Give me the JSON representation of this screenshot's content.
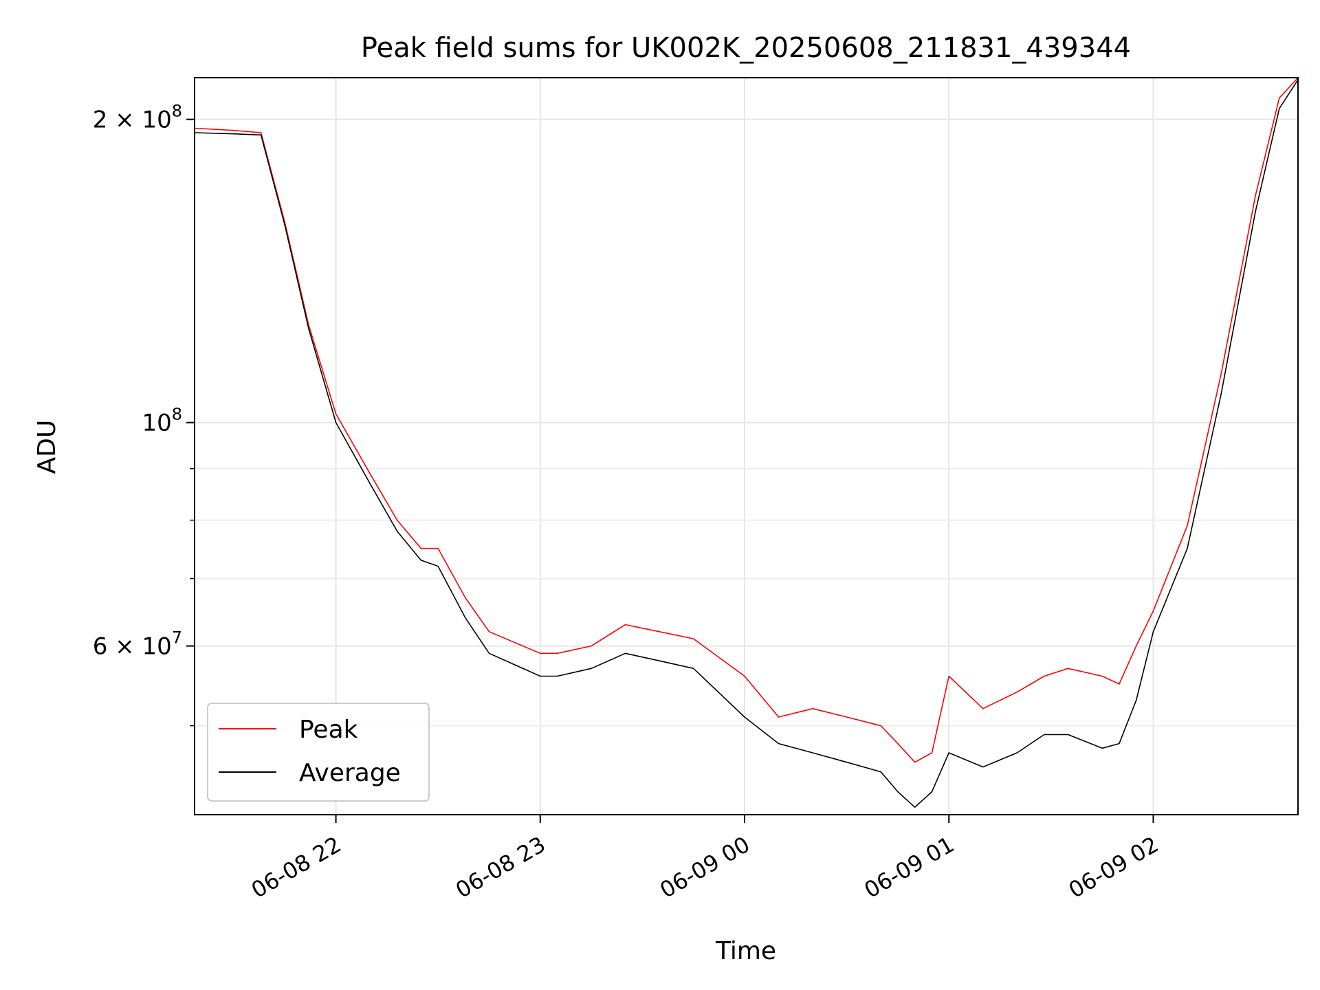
{
  "chart_data": {
    "type": "line",
    "title": "Peak field sums for UK002K_20250608_211831_439344",
    "xlabel": "Time",
    "ylabel": "ADU",
    "yscale": "log",
    "xlim": [
      "2025-06-08T21:18:30",
      "2025-06-09T02:42:30"
    ],
    "ylim": [
      40800000,
      220000000
    ],
    "grid": true,
    "legend": {
      "location": "lower-left"
    },
    "x_ticks": [
      {
        "value": "2025-06-08T22:00:00",
        "label": "06-08 22"
      },
      {
        "value": "2025-06-08T23:00:00",
        "label": "06-08 23"
      },
      {
        "value": "2025-06-09T00:00:00",
        "label": "06-09 00"
      },
      {
        "value": "2025-06-09T01:00:00",
        "label": "06-09 01"
      },
      {
        "value": "2025-06-09T02:00:00",
        "label": "06-09 02"
      }
    ],
    "y_ticks": [
      {
        "value": 200000000,
        "base": "2 × 10",
        "exp": "8"
      },
      {
        "value": 100000000,
        "base": "10",
        "exp": "8"
      },
      {
        "value": 60000000,
        "base": "6 × 10",
        "exp": "7"
      }
    ],
    "y_minor_ticks": [
      50000000,
      70000000,
      80000000,
      90000000
    ],
    "series": [
      {
        "name": "Peak",
        "color": "#ff0000",
        "x": [
          "2025-06-08T21:18:30",
          "2025-06-08T21:30:00",
          "2025-06-08T21:38:00",
          "2025-06-08T21:45:00",
          "2025-06-08T21:52:00",
          "2025-06-08T22:00:00",
          "2025-06-08T22:10:00",
          "2025-06-08T22:18:00",
          "2025-06-08T22:25:00",
          "2025-06-08T22:30:00",
          "2025-06-08T22:38:00",
          "2025-06-08T22:45:00",
          "2025-06-08T23:00:00",
          "2025-06-08T23:05:00",
          "2025-06-08T23:15:00",
          "2025-06-08T23:25:00",
          "2025-06-08T23:35:00",
          "2025-06-08T23:45:00",
          "2025-06-09T00:00:00",
          "2025-06-09T00:10:00",
          "2025-06-09T00:20:00",
          "2025-06-09T00:30:00",
          "2025-06-09T00:40:00",
          "2025-06-09T00:45:00",
          "2025-06-09T00:50:00",
          "2025-06-09T00:55:00",
          "2025-06-09T01:00:00",
          "2025-06-09T01:10:00",
          "2025-06-09T01:20:00",
          "2025-06-09T01:28:00",
          "2025-06-09T01:35:00",
          "2025-06-09T01:45:00",
          "2025-06-09T01:50:00",
          "2025-06-09T01:55:00",
          "2025-06-09T02:00:00",
          "2025-06-09T02:10:00",
          "2025-06-09T02:20:00",
          "2025-06-09T02:30:00",
          "2025-06-09T02:37:00",
          "2025-06-09T02:42:30"
        ],
        "values": [
          196000000,
          195000000,
          194000000,
          158000000,
          125000000,
          102000000,
          89000000,
          80000000,
          75000000,
          75000000,
          67000000,
          62000000,
          59000000,
          59000000,
          60000000,
          63000000,
          62000000,
          61000000,
          56000000,
          51000000,
          52000000,
          51000000,
          50000000,
          48000000,
          46000000,
          47000000,
          56000000,
          52000000,
          54000000,
          56000000,
          57000000,
          56000000,
          55000000,
          60000000,
          65000000,
          79000000,
          112000000,
          168000000,
          210000000,
          220000000
        ]
      },
      {
        "name": "Average",
        "color": "#000000",
        "x": [
          "2025-06-08T21:18:30",
          "2025-06-08T21:30:00",
          "2025-06-08T21:38:00",
          "2025-06-08T21:45:00",
          "2025-06-08T21:52:00",
          "2025-06-08T22:00:00",
          "2025-06-08T22:10:00",
          "2025-06-08T22:18:00",
          "2025-06-08T22:25:00",
          "2025-06-08T22:30:00",
          "2025-06-08T22:38:00",
          "2025-06-08T22:45:00",
          "2025-06-08T23:00:00",
          "2025-06-08T23:05:00",
          "2025-06-08T23:15:00",
          "2025-06-08T23:25:00",
          "2025-06-08T23:35:00",
          "2025-06-08T23:45:00",
          "2025-06-09T00:00:00",
          "2025-06-09T00:10:00",
          "2025-06-09T00:20:00",
          "2025-06-09T00:30:00",
          "2025-06-09T00:40:00",
          "2025-06-09T00:45:00",
          "2025-06-09T00:50:00",
          "2025-06-09T00:55:00",
          "2025-06-09T01:00:00",
          "2025-06-09T01:10:00",
          "2025-06-09T01:20:00",
          "2025-06-09T01:28:00",
          "2025-06-09T01:35:00",
          "2025-06-09T01:45:00",
          "2025-06-09T01:50:00",
          "2025-06-09T01:55:00",
          "2025-06-09T02:00:00",
          "2025-06-09T02:10:00",
          "2025-06-09T02:20:00",
          "2025-06-09T02:30:00",
          "2025-06-09T02:37:00",
          "2025-06-09T02:42:30"
        ],
        "values": [
          194000000,
          193500000,
          193000000,
          157000000,
          124000000,
          100000000,
          87000000,
          78000000,
          73000000,
          72000000,
          64000000,
          59000000,
          56000000,
          56000000,
          57000000,
          59000000,
          58000000,
          57000000,
          51000000,
          48000000,
          47000000,
          46000000,
          45000000,
          43000000,
          41500000,
          43000000,
          47000000,
          45500000,
          47000000,
          49000000,
          49000000,
          47500000,
          48000000,
          53000000,
          62000000,
          75000000,
          107000000,
          162000000,
          205000000,
          219000000
        ]
      }
    ]
  }
}
